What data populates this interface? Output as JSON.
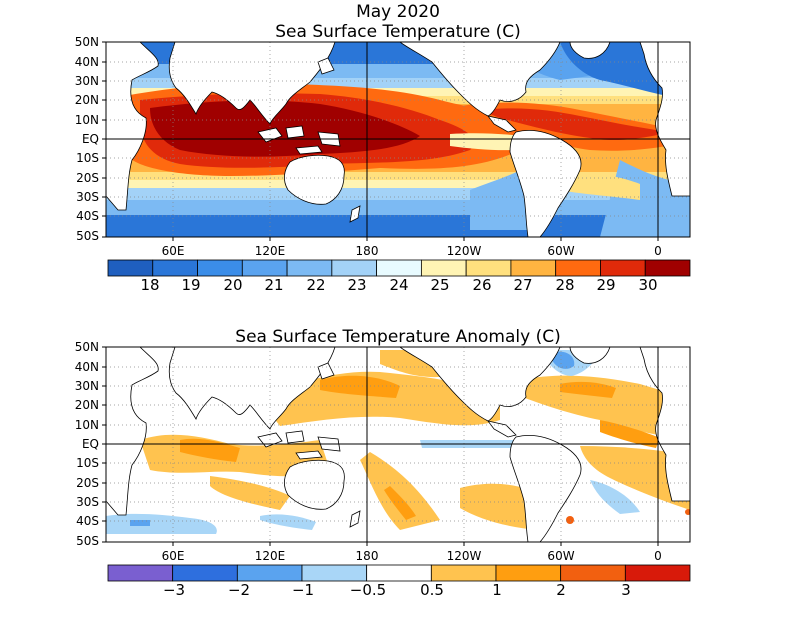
{
  "header": {
    "date": "May 2020"
  },
  "panels": {
    "sst": {
      "title": "Sea Surface Temperature (C)",
      "lat_labels": [
        "50N",
        "40N",
        "30N",
        "20N",
        "10N",
        "EQ",
        "10S",
        "20S",
        "30S",
        "40S",
        "50S"
      ],
      "lon_labels": [
        "60E",
        "120E",
        "180",
        "120W",
        "60W",
        "0"
      ],
      "colorbar": {
        "colors": [
          "#1f5fbf",
          "#2a76d8",
          "#3b8de8",
          "#5aa3ef",
          "#7cbaf3",
          "#a3d2f7",
          "#e8fbff",
          "#fff4b4",
          "#ffe07e",
          "#ffb441",
          "#ff6a10",
          "#e02a0a",
          "#a00000"
        ],
        "labels": [
          "18",
          "19",
          "20",
          "21",
          "22",
          "23",
          "24",
          "25",
          "26",
          "27",
          "28",
          "29",
          "30"
        ]
      }
    },
    "anomaly": {
      "title": "Sea Surface Temperature Anomaly (C)",
      "lat_labels": [
        "50N",
        "40N",
        "30N",
        "20N",
        "10N",
        "EQ",
        "10S",
        "20S",
        "30S",
        "40S",
        "50S"
      ],
      "lon_labels": [
        "60E",
        "120E",
        "180",
        "120W",
        "60W",
        "0"
      ],
      "colorbar": {
        "colors": [
          "#7a5fd0",
          "#2e6fde",
          "#5aa3ef",
          "#a9d6f7",
          "#ffffff",
          "#ffc34f",
          "#ff9e10",
          "#f26010",
          "#d81a0a"
        ],
        "labels": [
          "−3",
          "−2",
          "−1",
          "−0.5",
          "0.5",
          "1",
          "2",
          "3"
        ]
      }
    }
  }
}
